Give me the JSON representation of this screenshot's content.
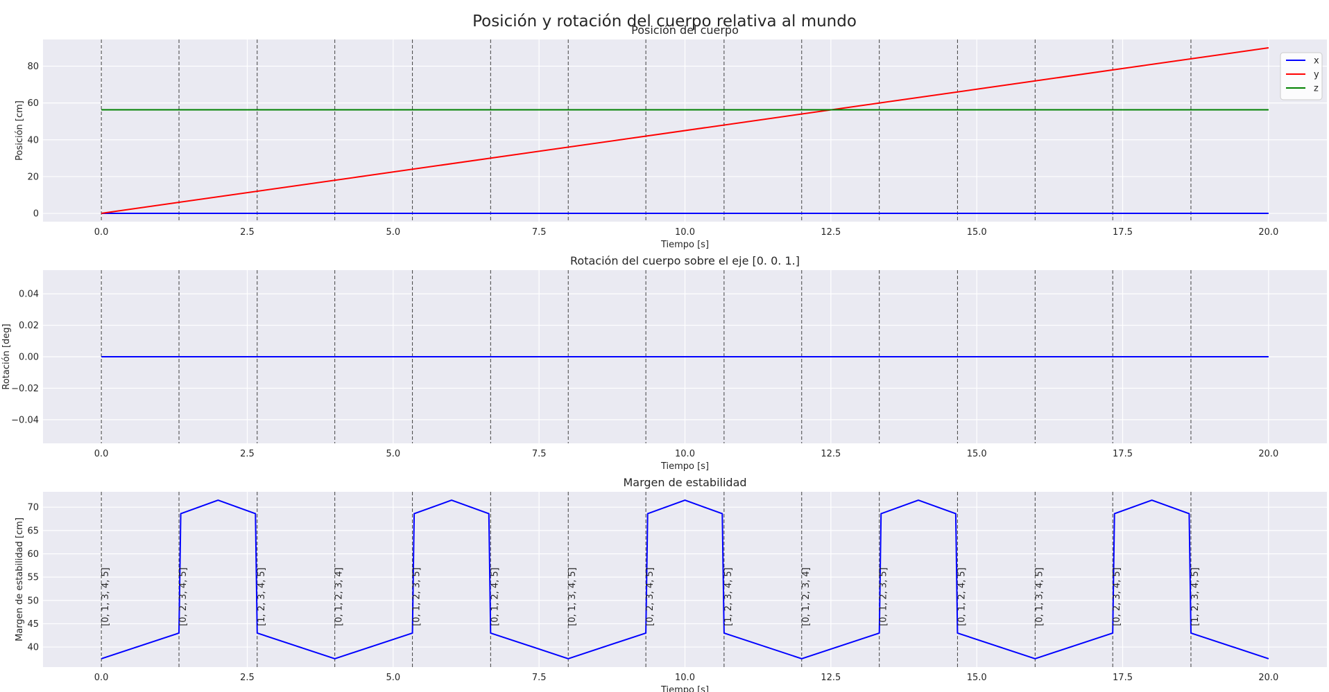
{
  "figure": {
    "title": "Posición y rotación del cuerpo relativa al mundo"
  },
  "style": {
    "plot_bg": "#eaeaf2",
    "grid_color": "#ffffff",
    "vline_color": "#404040",
    "text_color": "#262626",
    "x_color": "#0000ff",
    "y_color": "#ff0000",
    "z_color": "#008000",
    "margin_color": "#0000ff"
  },
  "chart_data": [
    {
      "type": "line",
      "title": "Posición del cuerpo",
      "xlabel": "Tiempo [s]",
      "ylabel": "Posición [cm]",
      "xlim": [
        -1.0,
        21.0
      ],
      "ylim": [
        -4.5,
        94.5
      ],
      "xticks": [
        0.0,
        2.5,
        5.0,
        7.5,
        10.0,
        12.5,
        15.0,
        17.5,
        20.0
      ],
      "xticklabels": [
        "0.0",
        "2.5",
        "5.0",
        "7.5",
        "10.0",
        "12.5",
        "15.0",
        "17.5",
        "20.0"
      ],
      "yticks": [
        0,
        20,
        40,
        60,
        80
      ],
      "yticklabels": [
        "0",
        "20",
        "40",
        "60",
        "80"
      ],
      "grid": true,
      "legend": "top-right",
      "vlines": [
        0.0,
        1.33,
        2.67,
        4.0,
        5.33,
        6.67,
        8.0,
        9.33,
        10.67,
        12.0,
        13.33,
        14.67,
        16.0,
        17.33,
        18.67
      ],
      "series": [
        {
          "name": "x",
          "color": "#0000ff",
          "x": [
            0,
            20
          ],
          "y": [
            0,
            0
          ]
        },
        {
          "name": "y",
          "color": "#ff0000",
          "x": [
            0,
            20
          ],
          "y": [
            0,
            90
          ]
        },
        {
          "name": "z",
          "color": "#008000",
          "x": [
            0,
            20
          ],
          "y": [
            56.3,
            56.3
          ]
        }
      ]
    },
    {
      "type": "line",
      "title": "Rotación del cuerpo sobre el eje [0. 0. 1.]",
      "xlabel": "Tiempo [s]",
      "ylabel": "Rotación [deg]",
      "xlim": [
        -1.0,
        21.0
      ],
      "ylim": [
        -0.055,
        0.055
      ],
      "xticks": [
        0.0,
        2.5,
        5.0,
        7.5,
        10.0,
        12.5,
        15.0,
        17.5,
        20.0
      ],
      "xticklabels": [
        "0.0",
        "2.5",
        "5.0",
        "7.5",
        "10.0",
        "12.5",
        "15.0",
        "17.5",
        "20.0"
      ],
      "yticks": [
        -0.04,
        -0.02,
        0.0,
        0.02,
        0.04
      ],
      "yticklabels": [
        "−0.04",
        "−0.02",
        "0.00",
        "0.02",
        "0.04"
      ],
      "grid": true,
      "vlines": [
        0.0,
        1.33,
        2.67,
        4.0,
        5.33,
        6.67,
        8.0,
        9.33,
        10.67,
        12.0,
        13.33,
        14.67,
        16.0,
        17.33,
        18.67
      ],
      "series": [
        {
          "color": "#0000ff",
          "x": [
            0,
            20
          ],
          "y": [
            0,
            0
          ]
        }
      ]
    },
    {
      "type": "line",
      "title": "Margen de estabilidad",
      "xlabel": "Tiempo [s]",
      "ylabel": "Margen de estabilidad [cm]",
      "xlim": [
        -1.0,
        21.0
      ],
      "ylim": [
        35.7,
        73.3
      ],
      "xticks": [
        0.0,
        2.5,
        5.0,
        7.5,
        10.0,
        12.5,
        15.0,
        17.5,
        20.0
      ],
      "xticklabels": [
        "0.0",
        "2.5",
        "5.0",
        "7.5",
        "10.0",
        "12.5",
        "15.0",
        "17.5",
        "20.0"
      ],
      "yticks": [
        40,
        45,
        50,
        55,
        60,
        65,
        70
      ],
      "yticklabels": [
        "40",
        "45",
        "50",
        "55",
        "60",
        "65",
        "70"
      ],
      "grid": true,
      "vlines": [
        0.0,
        1.33,
        2.67,
        4.0,
        5.33,
        6.67,
        8.0,
        9.33,
        10.67,
        12.0,
        13.33,
        14.67,
        16.0,
        17.33,
        18.67
      ],
      "series": [
        {
          "color": "#0000ff",
          "x": [
            0.0,
            1.33,
            1.36,
            2.0,
            2.64,
            2.67,
            4.0,
            5.33,
            5.36,
            6.0,
            6.64,
            6.67,
            8.0,
            9.33,
            9.36,
            10.0,
            10.64,
            10.67,
            12.0,
            13.33,
            13.36,
            14.0,
            14.64,
            14.67,
            16.0,
            17.33,
            17.36,
            18.0,
            18.64,
            18.67,
            20.0
          ],
          "y": [
            37.5,
            43.0,
            68.6,
            71.5,
            68.6,
            43.0,
            37.5,
            43.0,
            68.6,
            71.5,
            68.6,
            43.0,
            37.5,
            43.0,
            68.6,
            71.5,
            68.6,
            43.0,
            37.5,
            43.0,
            68.6,
            71.5,
            68.6,
            43.0,
            37.5,
            43.0,
            68.6,
            71.5,
            68.6,
            43.0,
            37.5
          ]
        }
      ],
      "annotations": [
        {
          "x": 0.0,
          "text": "[0, 1, 3, 4, 5]"
        },
        {
          "x": 1.33,
          "text": "[0, 2, 3, 4, 5]"
        },
        {
          "x": 2.67,
          "text": "[1, 2, 3, 4, 5]"
        },
        {
          "x": 4.0,
          "text": "[0, 1, 2, 3, 4]"
        },
        {
          "x": 5.33,
          "text": "[0, 1, 2, 3, 5]"
        },
        {
          "x": 6.67,
          "text": "[0, 1, 2, 4, 5]"
        },
        {
          "x": 8.0,
          "text": "[0, 1, 3, 4, 5]"
        },
        {
          "x": 9.33,
          "text": "[0, 2, 3, 4, 5]"
        },
        {
          "x": 10.67,
          "text": "[1, 2, 3, 4, 5]"
        },
        {
          "x": 12.0,
          "text": "[0, 1, 2, 3, 4]"
        },
        {
          "x": 13.33,
          "text": "[0, 1, 2, 3, 5]"
        },
        {
          "x": 14.67,
          "text": "[0, 1, 2, 4, 5]"
        },
        {
          "x": 16.0,
          "text": "[0, 1, 3, 4, 5]"
        },
        {
          "x": 17.33,
          "text": "[0, 2, 3, 4, 5]"
        },
        {
          "x": 18.67,
          "text": "[1, 2, 3, 4, 5]"
        }
      ],
      "annotation_y": 44.5
    }
  ]
}
